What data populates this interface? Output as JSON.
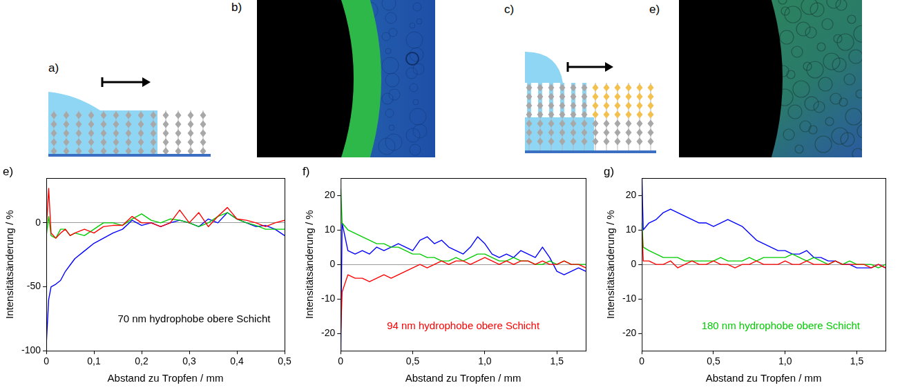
{
  "top_row_labels": [
    "a)",
    "b)",
    "c)",
    "e)"
  ],
  "chart_data": [
    {
      "type": "line",
      "panel": "e)",
      "x_label": "Abstand zu Tropfen / mm",
      "y_label": "Intensitätsänderung / %",
      "annotation": {
        "text": "70 nm hydrophobe obere Schicht",
        "color": "#000000"
      },
      "xlim": [
        0,
        0.5
      ],
      "xticks": [
        0,
        {
          "value": 0.1,
          "label": "0,1"
        },
        {
          "value": 0.2,
          "label": "0,2"
        },
        {
          "value": 0.3,
          "label": "0,3"
        },
        {
          "value": 0.4,
          "label": "0,4"
        },
        {
          "value": 0.5,
          "label": "0,5"
        }
      ],
      "ylim": [
        -100,
        35
      ],
      "yticks": [
        -100,
        -50,
        0
      ],
      "grid": false,
      "x": [
        0,
        0.005,
        0.01,
        0.02,
        0.03,
        0.04,
        0.05,
        0.06,
        0.08,
        0.1,
        0.12,
        0.14,
        0.16,
        0.18,
        0.2,
        0.22,
        0.24,
        0.26,
        0.28,
        0.3,
        0.32,
        0.34,
        0.36,
        0.38,
        0.4,
        0.42,
        0.44,
        0.46,
        0.48,
        0.5
      ],
      "series": [
        {
          "color": "#ff0000",
          "values": [
            -5,
            27,
            -8,
            -12,
            -8,
            -5,
            -10,
            -8,
            -5,
            -8,
            -3,
            -2,
            -2,
            5,
            0,
            0,
            -3,
            0,
            10,
            0,
            8,
            -3,
            5,
            12,
            3,
            2,
            0,
            -3,
            0,
            2
          ]
        },
        {
          "color": "#00cc00",
          "values": [
            -10,
            5,
            -10,
            -12,
            -5,
            -5,
            -10,
            -8,
            -10,
            -5,
            0,
            0,
            -2,
            3,
            7,
            2,
            0,
            3,
            2,
            0,
            -3,
            0,
            5,
            8,
            3,
            0,
            -2,
            -5,
            -5,
            -5
          ]
        },
        {
          "color": "#0000ff",
          "values": [
            -95,
            -60,
            -50,
            -48,
            -45,
            -38,
            -33,
            -28,
            -22,
            -16,
            -12,
            -8,
            -5,
            2,
            -2,
            0,
            -3,
            0,
            2,
            0,
            -3,
            3,
            0,
            8,
            3,
            0,
            -3,
            -2,
            -5,
            -10
          ]
        }
      ]
    },
    {
      "type": "line",
      "panel": "f)",
      "x_label": "Abstand zu Tropfen / mm",
      "y_label": "Intensitätsänderung / %",
      "annotation": {
        "text": "94 nm hydrophobe obere Schicht",
        "color": "#ff0000"
      },
      "xlim": [
        0,
        1.7
      ],
      "xticks": [
        0,
        {
          "value": 0.5,
          "label": "0,5"
        },
        {
          "value": 1,
          "label": "1,0"
        },
        {
          "value": 1.5,
          "label": "1,5"
        }
      ],
      "ylim": [
        -25,
        25
      ],
      "yticks": [
        -20,
        -10,
        0,
        10,
        20
      ],
      "grid": false,
      "x": [
        0,
        0.01,
        0.05,
        0.1,
        0.15,
        0.2,
        0.25,
        0.3,
        0.35,
        0.4,
        0.45,
        0.5,
        0.55,
        0.6,
        0.65,
        0.7,
        0.75,
        0.8,
        0.85,
        0.9,
        0.95,
        1.0,
        1.05,
        1.1,
        1.15,
        1.2,
        1.25,
        1.3,
        1.35,
        1.4,
        1.45,
        1.5,
        1.55,
        1.6,
        1.65,
        1.7
      ],
      "series": [
        {
          "color": "#ff0000",
          "values": [
            -20,
            -8,
            -3,
            -4,
            -4,
            -5,
            -4,
            -3,
            -4,
            -3,
            -2,
            -1,
            0,
            -1,
            0,
            1,
            0,
            1,
            1,
            0,
            1,
            2,
            1,
            0,
            1,
            0,
            1,
            1,
            0,
            1,
            0,
            0,
            1,
            0,
            0,
            -1
          ]
        },
        {
          "color": "#00cc00",
          "values": [
            22,
            12,
            10,
            9,
            8,
            7,
            6,
            6,
            5,
            5,
            4,
            3,
            3,
            2,
            2,
            1,
            1,
            2,
            1,
            2,
            3,
            3,
            2,
            1,
            1,
            2,
            1,
            1,
            0,
            0,
            1,
            0,
            1,
            0,
            0,
            0
          ]
        },
        {
          "color": "#0000ff",
          "values": [
            -25,
            12,
            4,
            3,
            4,
            3,
            5,
            4,
            5,
            6,
            5,
            4,
            7,
            8,
            6,
            7,
            5,
            4,
            3,
            5,
            8,
            6,
            3,
            2,
            3,
            2,
            4,
            3,
            2,
            5,
            2,
            -2,
            -3,
            -2,
            -1,
            -2
          ]
        }
      ]
    },
    {
      "type": "line",
      "panel": "g)",
      "x_label": "Abstand zu Tropfen / mm",
      "y_label": "Intensitätsänderung / %",
      "annotation": {
        "text": "180 nm hydrophobe obere Schicht",
        "color": "#00cc00"
      },
      "xlim": [
        0,
        1.7
      ],
      "xticks": [
        0,
        {
          "value": 0.5,
          "label": "0,5"
        },
        {
          "value": 1,
          "label": "1,0"
        },
        {
          "value": 1.5,
          "label": "1,5"
        }
      ],
      "ylim": [
        -25,
        25
      ],
      "yticks": [
        -20,
        -10,
        0,
        10,
        20
      ],
      "grid": false,
      "x": [
        0,
        0.01,
        0.05,
        0.1,
        0.15,
        0.2,
        0.25,
        0.3,
        0.35,
        0.4,
        0.45,
        0.5,
        0.55,
        0.6,
        0.65,
        0.7,
        0.75,
        0.8,
        0.85,
        0.9,
        0.95,
        1.0,
        1.05,
        1.1,
        1.15,
        1.2,
        1.25,
        1.3,
        1.35,
        1.4,
        1.45,
        1.5,
        1.55,
        1.6,
        1.65,
        1.7
      ],
      "series": [
        {
          "color": "#ff0000",
          "values": [
            10,
            1,
            1,
            0,
            0,
            1,
            -1,
            0,
            1,
            0,
            0,
            1,
            0,
            0,
            -1,
            0,
            0,
            1,
            0,
            0,
            0,
            1,
            0,
            0,
            1,
            0,
            0,
            0,
            1,
            0,
            0,
            0,
            0,
            -1,
            0,
            -1
          ]
        },
        {
          "color": "#00cc00",
          "values": [
            12,
            5,
            4,
            3,
            2,
            2,
            2,
            1,
            1,
            1,
            1,
            1,
            2,
            1,
            1,
            1,
            2,
            1,
            2,
            2,
            2,
            2,
            3,
            2,
            1,
            2,
            1,
            0,
            1,
            0,
            1,
            0,
            0,
            0,
            -1,
            0
          ]
        },
        {
          "color": "#0000ff",
          "values": [
            25,
            10,
            12,
            13,
            15,
            16,
            15,
            14,
            13,
            12,
            12,
            11,
            12,
            13,
            12,
            11,
            9,
            7,
            6,
            5,
            4,
            4,
            3,
            3,
            4,
            2,
            2,
            1,
            1,
            0,
            0,
            -1,
            -1,
            -1,
            0,
            -1
          ]
        }
      ]
    }
  ]
}
